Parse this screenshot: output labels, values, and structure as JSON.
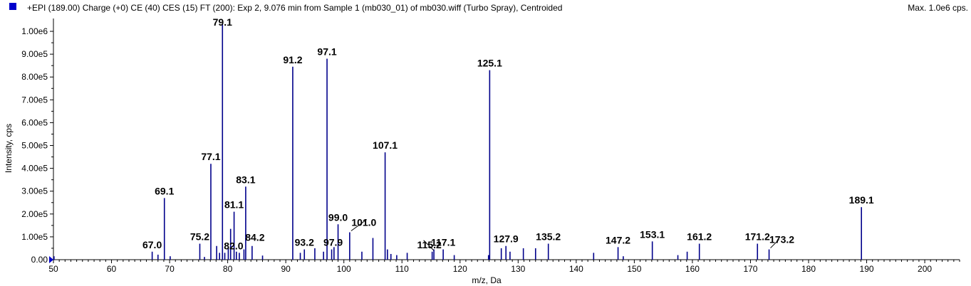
{
  "header": {
    "title": "+EPI (189.00) Charge (+0) CE (40) CES (15) FT (200): Exp 2, 9.076 min from Sample 1 (mb030_01) of mb030.wiff (Turbo Spray), Centroided",
    "max_label": "Max. 1.0e6 cps."
  },
  "colors": {
    "series": "#00008b",
    "swatch": "#0000cc",
    "axis": "#000000"
  },
  "chart_data": {
    "type": "bar",
    "title": "+EPI (189.00) Charge (+0) CE (40) CES (15) FT (200): Exp 2, 9.076 min from Sample 1 (mb030_01) of mb030.wiff (Turbo Spray), Centroided",
    "xlabel": "m/z, Da",
    "ylabel": "Intensity, cps",
    "xlim": [
      50,
      206
    ],
    "ylim": [
      0,
      1050000
    ],
    "x_ticks": [
      50,
      60,
      70,
      80,
      90,
      100,
      110,
      120,
      130,
      140,
      150,
      160,
      170,
      180,
      190,
      200
    ],
    "y_ticks": [
      0,
      100000,
      200000,
      300000,
      400000,
      500000,
      600000,
      700000,
      800000,
      900000,
      1000000
    ],
    "y_tick_labels": [
      "0.00",
      "1.00e5",
      "2.00e5",
      "3.00e5",
      "4.00e5",
      "5.00e5",
      "6.00e5",
      "7.00e5",
      "8.00e5",
      "9.00e5",
      "1.00e6"
    ],
    "grid": false,
    "peaks": [
      {
        "mz": 50.1,
        "intensity": 15000
      },
      {
        "mz": 67.0,
        "intensity": 35000,
        "label": "67.0"
      },
      {
        "mz": 68.0,
        "intensity": 22000
      },
      {
        "mz": 69.1,
        "intensity": 270000,
        "label": "69.1"
      },
      {
        "mz": 70.1,
        "intensity": 15000
      },
      {
        "mz": 75.2,
        "intensity": 70000,
        "label": "75.2"
      },
      {
        "mz": 76.0,
        "intensity": 12000
      },
      {
        "mz": 77.1,
        "intensity": 420000,
        "label": "77.1"
      },
      {
        "mz": 78.1,
        "intensity": 60000
      },
      {
        "mz": 78.6,
        "intensity": 30000
      },
      {
        "mz": 79.1,
        "intensity": 1030000,
        "label": "79.1"
      },
      {
        "mz": 79.5,
        "intensity": 30000
      },
      {
        "mz": 80.1,
        "intensity": 55000
      },
      {
        "mz": 80.5,
        "intensity": 135000
      },
      {
        "mz": 81.1,
        "intensity": 210000,
        "label": "81.1"
      },
      {
        "mz": 81.5,
        "intensity": 35000
      },
      {
        "mz": 82.0,
        "intensity": 30000,
        "label": "82.0"
      },
      {
        "mz": 82.8,
        "intensity": 45000
      },
      {
        "mz": 83.1,
        "intensity": 320000,
        "label": "83.1"
      },
      {
        "mz": 84.2,
        "intensity": 60000,
        "label": "84.2"
      },
      {
        "mz": 86.0,
        "intensity": 18000
      },
      {
        "mz": 91.2,
        "intensity": 845000,
        "label": "91.2"
      },
      {
        "mz": 92.5,
        "intensity": 30000
      },
      {
        "mz": 93.2,
        "intensity": 45000,
        "label": "93.2"
      },
      {
        "mz": 95.0,
        "intensity": 50000
      },
      {
        "mz": 96.5,
        "intensity": 35000
      },
      {
        "mz": 97.1,
        "intensity": 880000,
        "label": "97.1"
      },
      {
        "mz": 97.9,
        "intensity": 45000,
        "label": "97.9"
      },
      {
        "mz": 98.3,
        "intensity": 55000
      },
      {
        "mz": 99.0,
        "intensity": 155000,
        "label": "99.0"
      },
      {
        "mz": 101.0,
        "intensity": 120000,
        "label": "101.0"
      },
      {
        "mz": 103.1,
        "intensity": 35000
      },
      {
        "mz": 105.0,
        "intensity": 95000
      },
      {
        "mz": 107.1,
        "intensity": 470000,
        "label": "107.1"
      },
      {
        "mz": 107.5,
        "intensity": 45000
      },
      {
        "mz": 108.1,
        "intensity": 25000
      },
      {
        "mz": 109.1,
        "intensity": 20000
      },
      {
        "mz": 110.9,
        "intensity": 30000
      },
      {
        "mz": 115.2,
        "intensity": 35000,
        "label": "115.2"
      },
      {
        "mz": 115.5,
        "intensity": 45000
      },
      {
        "mz": 117.1,
        "intensity": 45000,
        "label": "117.1"
      },
      {
        "mz": 119.0,
        "intensity": 20000
      },
      {
        "mz": 124.9,
        "intensity": 20000
      },
      {
        "mz": 125.1,
        "intensity": 830000,
        "label": "125.1"
      },
      {
        "mz": 127.1,
        "intensity": 50000
      },
      {
        "mz": 127.9,
        "intensity": 60000,
        "label": "127.9"
      },
      {
        "mz": 128.6,
        "intensity": 35000
      },
      {
        "mz": 130.9,
        "intensity": 50000
      },
      {
        "mz": 133.0,
        "intensity": 50000
      },
      {
        "mz": 135.2,
        "intensity": 70000,
        "label": "135.2"
      },
      {
        "mz": 143.0,
        "intensity": 30000
      },
      {
        "mz": 147.2,
        "intensity": 55000,
        "label": "147.2"
      },
      {
        "mz": 148.1,
        "intensity": 15000
      },
      {
        "mz": 153.1,
        "intensity": 80000,
        "label": "153.1"
      },
      {
        "mz": 157.5,
        "intensity": 20000
      },
      {
        "mz": 159.1,
        "intensity": 35000
      },
      {
        "mz": 161.2,
        "intensity": 70000,
        "label": "161.2"
      },
      {
        "mz": 171.2,
        "intensity": 70000,
        "label": "171.2"
      },
      {
        "mz": 173.2,
        "intensity": 45000,
        "label": "173.2"
      },
      {
        "mz": 189.1,
        "intensity": 230000,
        "label": "189.1"
      }
    ]
  }
}
